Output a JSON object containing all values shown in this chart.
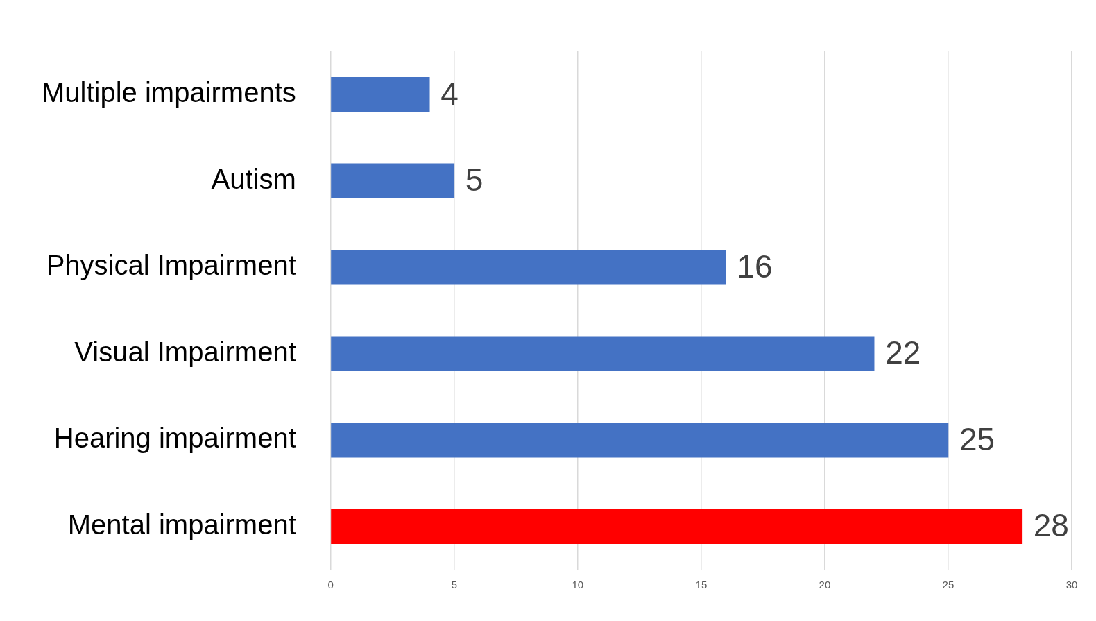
{
  "chart_data": {
    "type": "bar",
    "orientation": "horizontal",
    "categories": [
      "Multiple impairments",
      "Autism",
      "Physical Impairment",
      "Visual Impairment",
      "Hearing impairment",
      "Mental impairment"
    ],
    "values": [
      4,
      5,
      16,
      22,
      25,
      28
    ],
    "colors": [
      "#4472c4",
      "#4472c4",
      "#4472c4",
      "#4472c4",
      "#4472c4",
      "#ff0000"
    ],
    "xlim": [
      0,
      30
    ],
    "xticks": [
      0,
      5,
      10,
      15,
      20,
      25,
      30
    ],
    "grid": "x",
    "data_labels": true
  }
}
